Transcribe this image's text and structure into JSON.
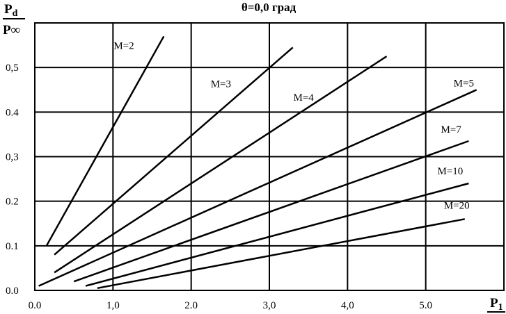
{
  "chart_data": {
    "type": "line",
    "title": "θ=0,0 град",
    "ylabel": {
      "numerator": "P",
      "numerator_sub": "d",
      "denominator": "P∞"
    },
    "xlabel": {
      "main": "P",
      "sub": "1"
    },
    "xlim": [
      0,
      6
    ],
    "ylim": [
      0,
      0.6
    ],
    "grid": true,
    "legend": "inline",
    "x_ticks": [
      {
        "value": 0,
        "label": "0.0"
      },
      {
        "value": 1,
        "label": "1,0"
      },
      {
        "value": 2,
        "label": "2.0"
      },
      {
        "value": 3,
        "label": "3,0"
      },
      {
        "value": 4,
        "label": "4,0"
      },
      {
        "value": 5,
        "label": "5.0"
      }
    ],
    "y_ticks": [
      {
        "value": 0,
        "label": "0.0"
      },
      {
        "value": 0.1,
        "label": "0.1"
      },
      {
        "value": 0.2,
        "label": "0.2"
      },
      {
        "value": 0.3,
        "label": "0,3"
      },
      {
        "value": 0.4,
        "label": "0.4"
      },
      {
        "value": 0.5,
        "label": "0,5"
      }
    ],
    "series": [
      {
        "name": "M=2",
        "x": [
          0.15,
          1.65
        ],
        "y": [
          0.1,
          0.57
        ]
      },
      {
        "name": "M=3",
        "x": [
          0.25,
          3.3
        ],
        "y": [
          0.08,
          0.545
        ]
      },
      {
        "name": "M=4",
        "x": [
          0.25,
          4.5
        ],
        "y": [
          0.04,
          0.525
        ]
      },
      {
        "name": "M=5",
        "x": [
          0.05,
          5.65
        ],
        "y": [
          0.01,
          0.45
        ]
      },
      {
        "name": "M=7",
        "x": [
          0.5,
          5.55
        ],
        "y": [
          0.02,
          0.335
        ]
      },
      {
        "name": "M=10",
        "x": [
          0.65,
          5.55
        ],
        "y": [
          0.01,
          0.24
        ]
      },
      {
        "name": "M=20",
        "x": [
          0.8,
          5.5
        ],
        "y": [
          0.005,
          0.16
        ]
      }
    ]
  }
}
